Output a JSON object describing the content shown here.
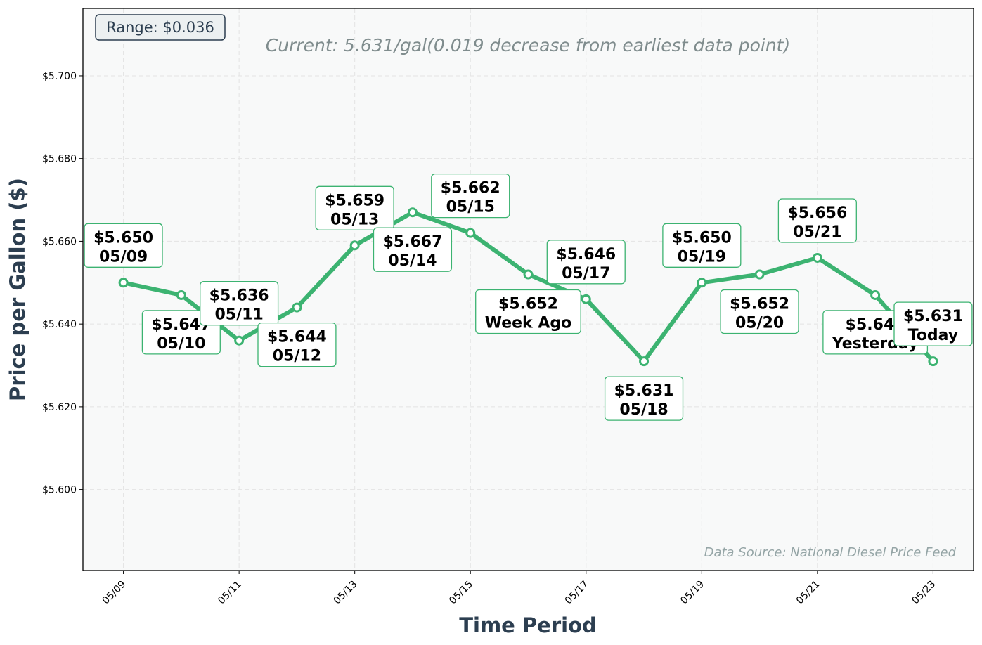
{
  "chart_data": {
    "type": "line",
    "subtitle": "Current: 5.631/gal(0.019 decrease from earliest data point)",
    "xlabel": "Time Period",
    "ylabel": "Price per Gallon ($)",
    "range_label": "Range: $0.036",
    "source_note": "Data Source: National Diesel Price Feed",
    "ylim": [
      5.5804,
      5.7163
    ],
    "xlim": [
      "05/08",
      "05/23"
    ],
    "yticks": [
      5.6,
      5.62,
      5.64,
      5.66,
      5.68,
      5.7
    ],
    "ytick_labels": [
      "$5.600",
      "$5.620",
      "$5.640",
      "$5.660",
      "$5.680",
      "$5.700"
    ],
    "xtick_labels": [
      "05/09",
      "05/11",
      "05/13",
      "05/15",
      "05/17",
      "05/19",
      "05/21",
      "05/23"
    ],
    "grid": true,
    "line_color": "#3cb371",
    "series": [
      {
        "x": [
          "05/09",
          "05/10",
          "05/11",
          "05/12",
          "05/13",
          "05/14",
          "05/15",
          "05/16",
          "05/17",
          "05/18",
          "05/19",
          "05/20",
          "05/21",
          "05/22",
          "05/23"
        ],
        "values": [
          5.65,
          5.647,
          5.636,
          5.644,
          5.659,
          5.667,
          5.662,
          5.652,
          5.646,
          5.631,
          5.65,
          5.652,
          5.656,
          5.647,
          5.631
        ]
      }
    ],
    "annotations": [
      {
        "x": "05/09",
        "value": "$5.650",
        "label": "05/09",
        "place": "above"
      },
      {
        "x": "05/10",
        "value": "$5.647",
        "label": "05/10",
        "place": "below"
      },
      {
        "x": "05/11",
        "value": "$5.636",
        "label": "05/11",
        "place": "above"
      },
      {
        "x": "05/12",
        "value": "$5.644",
        "label": "05/12",
        "place": "below"
      },
      {
        "x": "05/13",
        "value": "$5.659",
        "label": "05/13",
        "place": "above"
      },
      {
        "x": "05/14",
        "value": "$5.667",
        "label": "05/14",
        "place": "below"
      },
      {
        "x": "05/15",
        "value": "$5.662",
        "label": "05/15",
        "place": "above"
      },
      {
        "x": "05/16",
        "value": "$5.652",
        "label": "Week Ago",
        "place": "below"
      },
      {
        "x": "05/17",
        "value": "$5.646",
        "label": "05/17",
        "place": "above"
      },
      {
        "x": "05/18",
        "value": "$5.631",
        "label": "05/18",
        "place": "below"
      },
      {
        "x": "05/19",
        "value": "$5.650",
        "label": "05/19",
        "place": "above"
      },
      {
        "x": "05/20",
        "value": "$5.652",
        "label": "05/20",
        "place": "below"
      },
      {
        "x": "05/21",
        "value": "$5.656",
        "label": "05/21",
        "place": "above"
      },
      {
        "x": "05/22",
        "value": "$5.647",
        "label": "Yesterday",
        "place": "below"
      },
      {
        "x": "05/23",
        "value": "$5.631",
        "label": "Today",
        "place": "above"
      }
    ]
  }
}
